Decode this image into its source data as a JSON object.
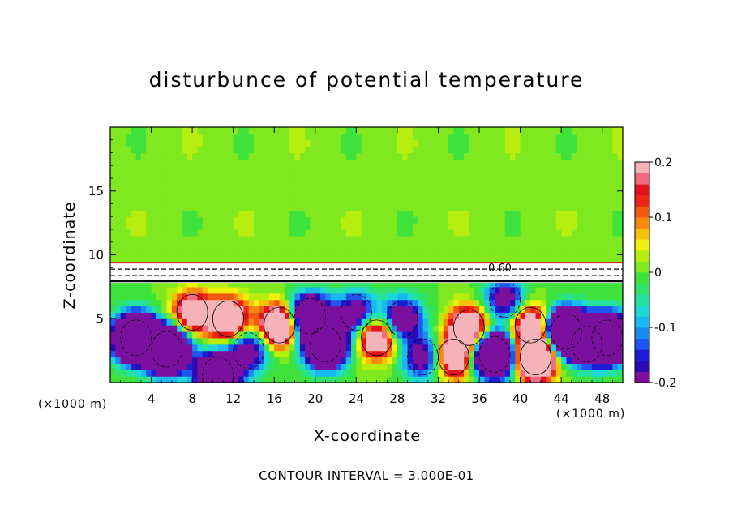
{
  "chart_data": {
    "type": "heatmap",
    "title": "disturbunce of potential temperature",
    "xlabel": "X-coordinate",
    "ylabel": "Z-coordinate",
    "x_unit_left": "(×1000 m)",
    "x_unit_right": "(×1000 m)",
    "xlim": [
      0,
      50
    ],
    "ylim": [
      0,
      20
    ],
    "x_ticks": [
      4,
      8,
      12,
      16,
      20,
      24,
      28,
      32,
      36,
      40,
      44,
      48
    ],
    "y_ticks": [
      5,
      10,
      15
    ],
    "colorbar": {
      "range": [
        -0.2,
        0.2
      ],
      "tick_values": [
        0.2,
        0.1,
        0,
        -0.1,
        -0.2
      ],
      "tick_labels": [
        "0.2",
        "0.1",
        "0",
        "-0.1",
        "-0.2"
      ],
      "colors": [
        "#7b0f9e",
        "#2a0ab3",
        "#1d1dd6",
        "#1f55f0",
        "#1d8af2",
        "#17b9ee",
        "#1ed7d7",
        "#26e2a0",
        "#2fe26a",
        "#3fe23a",
        "#7fe81e",
        "#b7ee10",
        "#eef20c",
        "#f6c00b",
        "#f78a0d",
        "#f25a12",
        "#ee2616",
        "#e3101e",
        "#f06a80",
        "#f5b2b8"
      ]
    },
    "contour_label": "0.60",
    "contour_interval_text": "CONTOUR INTERVAL = 3.000E-01",
    "layer_boundary_z": 9.2,
    "upper_background_value": 0.01,
    "disturbances": [
      {
        "x": 2.5,
        "z": 3.5,
        "value": -0.9
      },
      {
        "x": 5.5,
        "z": 2.6,
        "value": -0.8
      },
      {
        "x": 8.0,
        "z": 5.5,
        "value": 0.3
      },
      {
        "x": 10.5,
        "z": 0.6,
        "value": -0.6
      },
      {
        "x": 11.5,
        "z": 5.0,
        "value": 0.35
      },
      {
        "x": 13.5,
        "z": 2.5,
        "value": -0.25
      },
      {
        "x": 16.5,
        "z": 4.5,
        "value": 0.4
      },
      {
        "x": 19.5,
        "z": 5.2,
        "value": -0.5
      },
      {
        "x": 21.0,
        "z": 3.0,
        "value": -0.7
      },
      {
        "x": 24.0,
        "z": 5.5,
        "value": -0.25
      },
      {
        "x": 26.0,
        "z": 3.5,
        "value": 0.3
      },
      {
        "x": 28.5,
        "z": 5.0,
        "value": -0.3
      },
      {
        "x": 30.5,
        "z": 2.0,
        "value": -0.25
      },
      {
        "x": 33.5,
        "z": 2.0,
        "value": 0.3
      },
      {
        "x": 35.0,
        "z": 4.3,
        "value": 0.35
      },
      {
        "x": 37.5,
        "z": 2.2,
        "value": -0.7
      },
      {
        "x": 38.5,
        "z": 6.5,
        "value": -0.25
      },
      {
        "x": 41.0,
        "z": 4.5,
        "value": 0.3
      },
      {
        "x": 41.5,
        "z": 2.0,
        "value": 0.6
      },
      {
        "x": 44.5,
        "z": 4.0,
        "value": -0.8
      },
      {
        "x": 46.5,
        "z": 3.0,
        "value": -0.25
      },
      {
        "x": 48.5,
        "z": 3.5,
        "value": -0.9
      }
    ]
  }
}
